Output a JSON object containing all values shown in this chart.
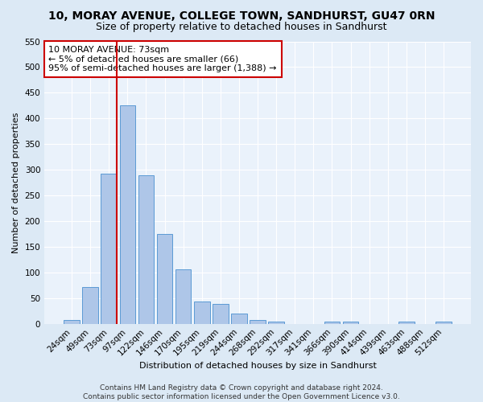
{
  "title": "10, MORAY AVENUE, COLLEGE TOWN, SANDHURST, GU47 0RN",
  "subtitle": "Size of property relative to detached houses in Sandhurst",
  "xlabel": "Distribution of detached houses by size in Sandhurst",
  "ylabel": "Number of detached properties",
  "bar_labels": [
    "24sqm",
    "49sqm",
    "73sqm",
    "97sqm",
    "122sqm",
    "146sqm",
    "170sqm",
    "195sqm",
    "219sqm",
    "244sqm",
    "268sqm",
    "292sqm",
    "317sqm",
    "341sqm",
    "366sqm",
    "390sqm",
    "414sqm",
    "439sqm",
    "463sqm",
    "488sqm",
    "512sqm"
  ],
  "bar_values": [
    8,
    71,
    293,
    425,
    290,
    175,
    106,
    43,
    38,
    20,
    8,
    5,
    0,
    0,
    5,
    5,
    0,
    0,
    5,
    0,
    4
  ],
  "bar_color": "#aec6e8",
  "bar_edge_color": "#5b9bd5",
  "vline_index": 2,
  "vline_color": "#cc0000",
  "ylim": [
    0,
    550
  ],
  "yticks": [
    0,
    50,
    100,
    150,
    200,
    250,
    300,
    350,
    400,
    450,
    500,
    550
  ],
  "annotation_title": "10 MORAY AVENUE: 73sqm",
  "annotation_line1": "← 5% of detached houses are smaller (66)",
  "annotation_line2": "95% of semi-detached houses are larger (1,388) →",
  "annotation_box_color": "#cc0000",
  "footer1": "Contains HM Land Registry data © Crown copyright and database right 2024.",
  "footer2": "Contains public sector information licensed under the Open Government Licence v3.0.",
  "bg_color": "#dce9f5",
  "plot_bg_color": "#eaf2fb",
  "grid_color": "#ffffff",
  "title_fontsize": 10,
  "subtitle_fontsize": 9,
  "label_fontsize": 8,
  "tick_fontsize": 7.5,
  "annotation_fontsize": 8,
  "footer_fontsize": 6.5
}
